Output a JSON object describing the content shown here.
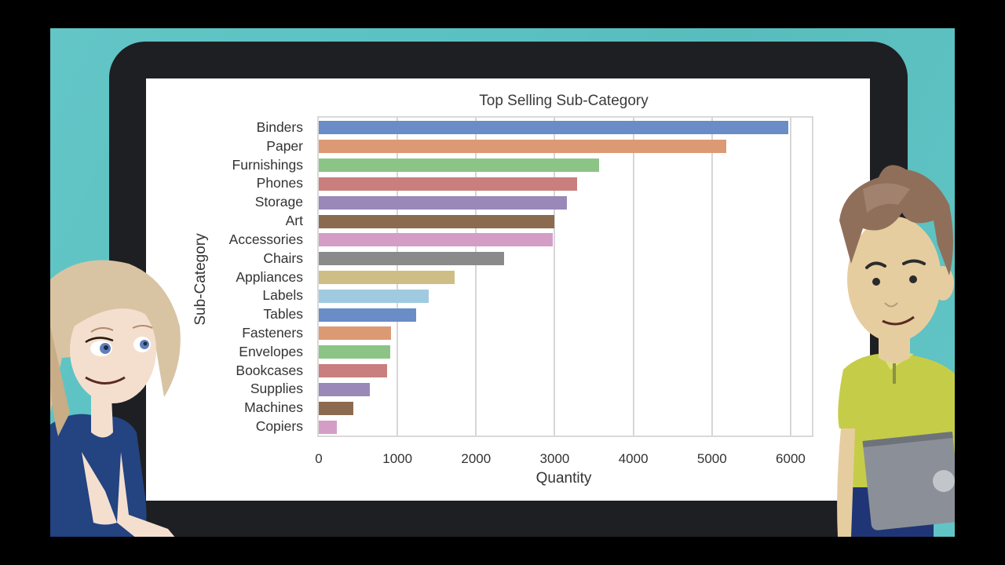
{
  "scene": {
    "background_color": "#5bc2c3",
    "monitor_color": "#1e1f23",
    "screen_color": "#ffffff"
  },
  "chart_data": {
    "type": "bar",
    "orientation": "horizontal",
    "title": "Top Selling Sub-Category",
    "xlabel": "Quantity",
    "ylabel": "Sub-Category",
    "xlim": [
      0,
      6270
    ],
    "xticks": [
      0,
      1000,
      2000,
      3000,
      4000,
      5000,
      6000
    ],
    "xtick_labels": [
      "0",
      "1000",
      "2000",
      "3000",
      "4000",
      "5000",
      "6000"
    ],
    "grid": true,
    "legend": null,
    "categories": [
      "Binders",
      "Paper",
      "Furnishings",
      "Phones",
      "Storage",
      "Art",
      "Accessories",
      "Chairs",
      "Appliances",
      "Labels",
      "Tables",
      "Fasteners",
      "Envelopes",
      "Bookcases",
      "Supplies",
      "Machines",
      "Copiers"
    ],
    "values": [
      5974,
      5178,
      3563,
      3289,
      3158,
      3000,
      2976,
      2356,
      1729,
      1400,
      1241,
      914,
      906,
      868,
      647,
      440,
      234
    ],
    "colors": [
      "#6a8cc7",
      "#dc9a74",
      "#8cc486",
      "#c97f7d",
      "#9a88b8",
      "#8b6b4f",
      "#d49dc6",
      "#8a8a8a",
      "#cfbd86",
      "#a0cadf",
      "#6a8cc7",
      "#dc9a74",
      "#8cc486",
      "#c97f7d",
      "#9a88b8",
      "#8b6b4f",
      "#d49dc6"
    ]
  },
  "characters": {
    "left": {
      "description": "cartoon woman with blonde hair, blue top",
      "hair": "#d8c4a2",
      "skin": "#f4dfcf",
      "shirt": "#234381"
    },
    "right": {
      "description": "cartoon man with brown hair, yellow-green polo, holding tablet",
      "hair": "#8f6f5a",
      "skin": "#e6cda0",
      "shirt": "#c5cd48",
      "tablet": "#8b9098"
    }
  }
}
